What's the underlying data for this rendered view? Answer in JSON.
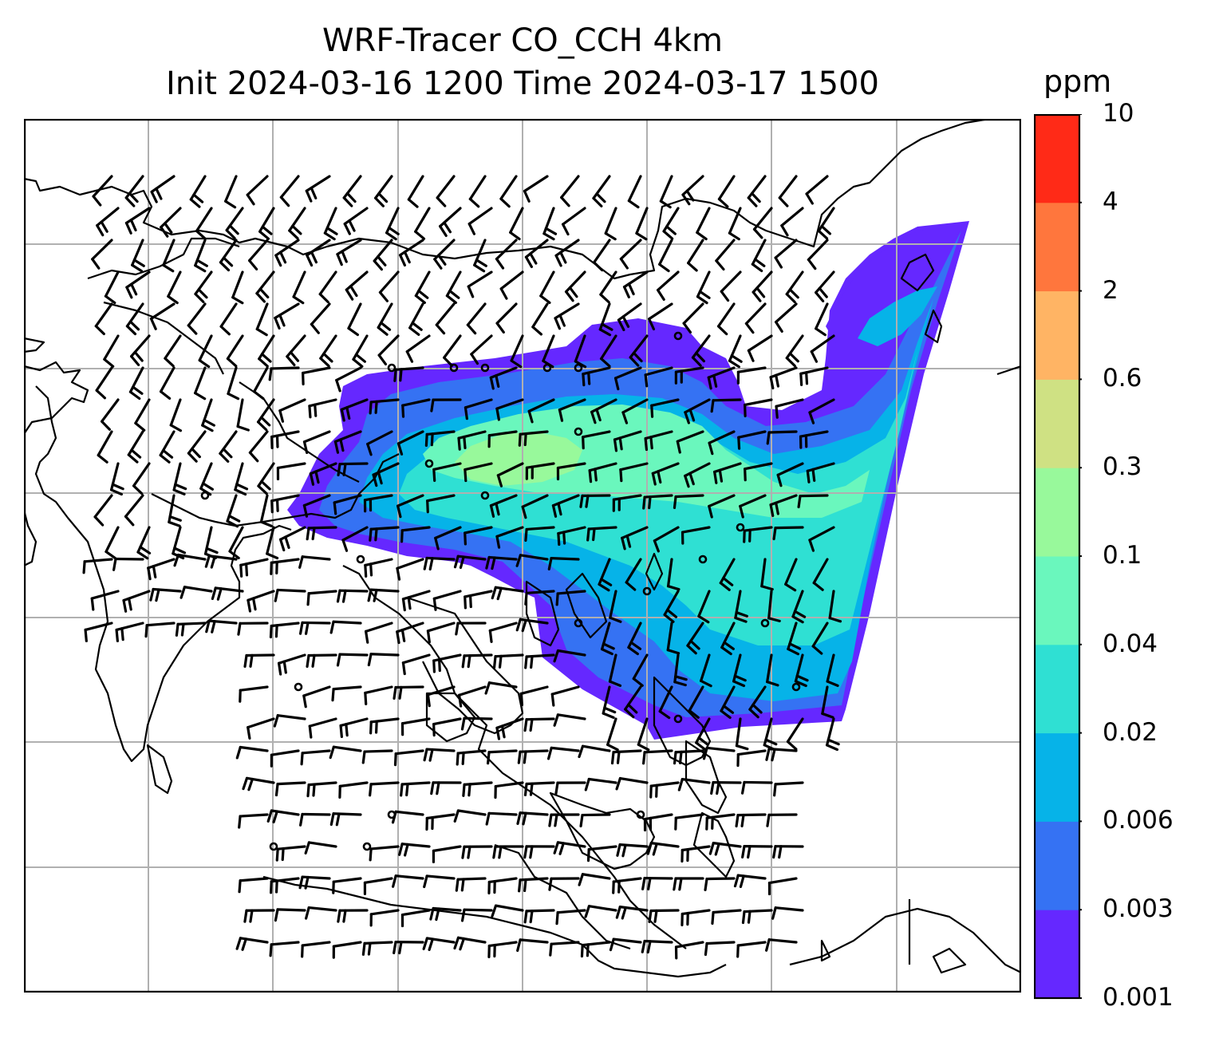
{
  "title": {
    "line1": "WRF-Tracer CO_CCH 4km",
    "line2": "Init 2024-03-16 1200 Time 2024-03-17 1500"
  },
  "colorbar": {
    "unit": "ppm",
    "levels": [
      "0.001",
      "0.003",
      "0.006",
      "0.02",
      "0.04",
      "0.1",
      "0.3",
      "0.6",
      "2",
      "4",
      "10"
    ],
    "colors": [
      "#6528ff",
      "#3572f3",
      "#06b3e8",
      "#2fe0d3",
      "#6af7bd",
      "#98f99b",
      "#cfe183",
      "#ffb464",
      "#ff763d",
      "#ff2a17"
    ]
  },
  "map": {
    "grid_color": "#b0b0b0",
    "coast_color": "#000000",
    "barb_color": "#000000",
    "plume_colors": {
      "outer": "#6528ff",
      "band2": "#3572f3",
      "band3": "#06b3e8",
      "band4": "#2fe0d3",
      "band5": "#6af7bd",
      "core": "#98f99b"
    }
  }
}
